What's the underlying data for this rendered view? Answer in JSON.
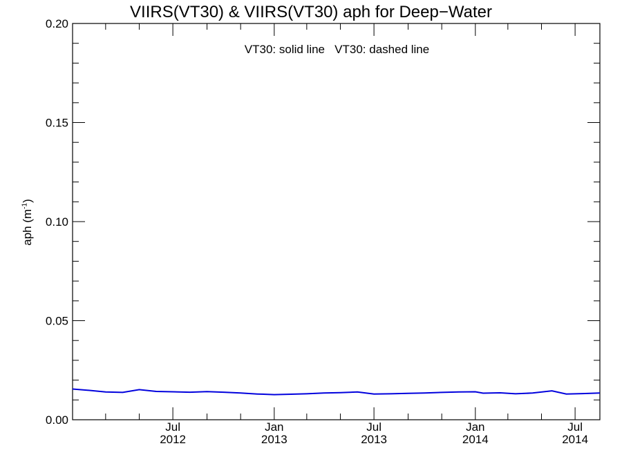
{
  "chart_data": {
    "type": "line",
    "title": "VIIRS(VT30) & VIIRS(VT30)  aph for Deep−Water",
    "legend_text": "VT30: solid line   VT30: dashed line",
    "ylabel": "aph (m",
    "ylabel_sup": "-1",
    "ylabel_close": ")",
    "xlabel": "",
    "ylim": [
      0.0,
      0.2
    ],
    "y_ticks": [
      "0.00",
      "0.05",
      "0.10",
      "0.15",
      "0.20"
    ],
    "x_ticks": [
      {
        "month": "Jul",
        "year": "2012",
        "date": "2012-07-01"
      },
      {
        "month": "Jan",
        "year": "2013",
        "date": "2013-01-01"
      },
      {
        "month": "Jul",
        "year": "2013",
        "date": "2013-07-01"
      },
      {
        "month": "Jan",
        "year": "2014",
        "date": "2014-01-01"
      },
      {
        "month": "Jul",
        "year": "2014",
        "date": "2014-07-01"
      }
    ],
    "xlim": [
      "2012-01-01",
      "2014-08-15"
    ],
    "series": [
      {
        "line": "solid",
        "color": "#0000dd",
        "points": [
          {
            "x": "2012-01-01",
            "y": 0.0155
          },
          {
            "x": "2012-02-01",
            "y": 0.0148
          },
          {
            "x": "2012-03-01",
            "y": 0.014
          },
          {
            "x": "2012-04-01",
            "y": 0.0138
          },
          {
            "x": "2012-05-01",
            "y": 0.0152
          },
          {
            "x": "2012-06-01",
            "y": 0.0143
          },
          {
            "x": "2012-07-01",
            "y": 0.0141
          },
          {
            "x": "2012-08-01",
            "y": 0.0139
          },
          {
            "x": "2012-09-01",
            "y": 0.0142
          },
          {
            "x": "2012-10-01",
            "y": 0.0139
          },
          {
            "x": "2012-11-01",
            "y": 0.0135
          },
          {
            "x": "2012-12-01",
            "y": 0.013
          },
          {
            "x": "2013-01-01",
            "y": 0.0127
          },
          {
            "x": "2013-02-01",
            "y": 0.0129
          },
          {
            "x": "2013-03-01",
            "y": 0.0131
          },
          {
            "x": "2013-04-01",
            "y": 0.0135
          },
          {
            "x": "2013-05-01",
            "y": 0.0137
          },
          {
            "x": "2013-06-01",
            "y": 0.014
          },
          {
            "x": "2013-07-01",
            "y": 0.013
          },
          {
            "x": "2013-08-01",
            "y": 0.0131
          },
          {
            "x": "2013-09-01",
            "y": 0.0133
          },
          {
            "x": "2013-10-01",
            "y": 0.0135
          },
          {
            "x": "2013-11-01",
            "y": 0.0138
          },
          {
            "x": "2013-12-01",
            "y": 0.014
          },
          {
            "x": "2014-01-01",
            "y": 0.0141
          },
          {
            "x": "2014-01-15",
            "y": 0.0134
          },
          {
            "x": "2014-02-15",
            "y": 0.0136
          },
          {
            "x": "2014-03-15",
            "y": 0.0131
          },
          {
            "x": "2014-04-15",
            "y": 0.0135
          },
          {
            "x": "2014-05-20",
            "y": 0.0146
          },
          {
            "x": "2014-06-15",
            "y": 0.013
          },
          {
            "x": "2014-07-15",
            "y": 0.0132
          },
          {
            "x": "2014-08-15",
            "y": 0.0135
          }
        ]
      }
    ],
    "grid": false
  }
}
